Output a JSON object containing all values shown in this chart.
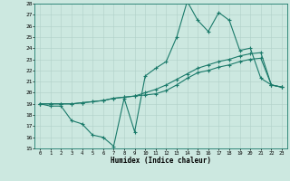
{
  "xlabel": "Humidex (Indice chaleur)",
  "xlim": [
    -0.5,
    23.5
  ],
  "ylim": [
    15,
    28
  ],
  "xticks": [
    0,
    1,
    2,
    3,
    4,
    5,
    6,
    7,
    8,
    9,
    10,
    11,
    12,
    13,
    14,
    15,
    16,
    17,
    18,
    19,
    20,
    21,
    22,
    23
  ],
  "yticks": [
    15,
    16,
    17,
    18,
    19,
    20,
    21,
    22,
    23,
    24,
    25,
    26,
    27,
    28
  ],
  "bg_color": "#cce8e0",
  "line_color": "#1a7a6a",
  "line1_y": [
    19.0,
    18.8,
    18.8,
    17.5,
    17.2,
    16.2,
    16.0,
    15.2,
    19.5,
    16.5,
    21.5,
    22.2,
    22.8,
    25.0,
    28.2,
    26.5,
    25.5,
    27.2,
    26.5,
    23.8,
    24.0,
    21.3,
    20.7,
    20.5
  ],
  "line2_y": [
    19.0,
    19.0,
    19.0,
    19.0,
    19.1,
    19.2,
    19.3,
    19.5,
    19.6,
    19.7,
    20.0,
    20.3,
    20.7,
    21.2,
    21.7,
    22.2,
    22.5,
    22.8,
    23.0,
    23.3,
    23.5,
    23.6,
    20.7,
    20.5
  ],
  "line3_y": [
    19.0,
    19.0,
    19.0,
    19.0,
    19.1,
    19.2,
    19.3,
    19.5,
    19.6,
    19.7,
    19.8,
    19.9,
    20.2,
    20.7,
    21.3,
    21.8,
    22.0,
    22.3,
    22.5,
    22.8,
    23.0,
    23.1,
    20.7,
    20.5
  ]
}
